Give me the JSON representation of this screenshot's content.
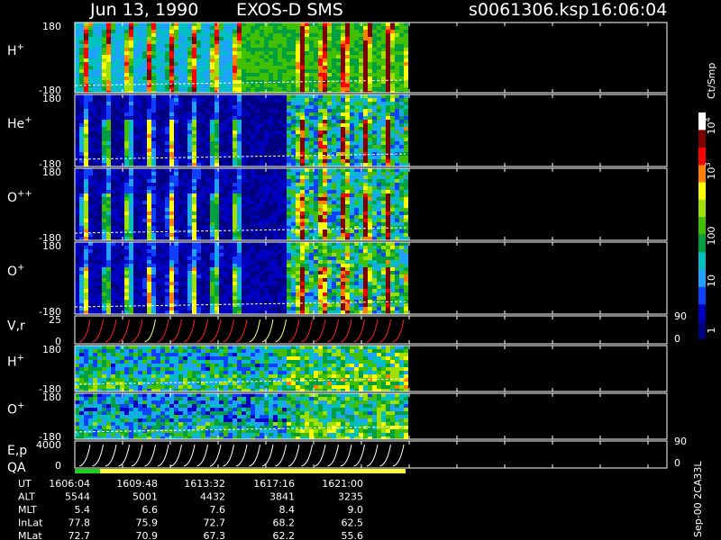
{
  "header": {
    "date": "Jun 13, 1990",
    "instrument": "EXOS-D SMS",
    "file": "s0061306.ksp",
    "time": "16:06:04"
  },
  "panels": [
    {
      "label": "H",
      "sup": "+",
      "ticks": [
        "180",
        "-180"
      ]
    },
    {
      "label": "He",
      "sup": "+",
      "ticks": [
        "180",
        "-180"
      ]
    },
    {
      "label": "O",
      "sup": "++",
      "ticks": [
        "180",
        "-180"
      ]
    },
    {
      "label": "O",
      "sup": "+",
      "ticks": [
        "180",
        "-180"
      ]
    },
    {
      "label": "V,r",
      "ticks": [
        "25",
        "0"
      ],
      "right_ticks": [
        "90",
        "0"
      ]
    },
    {
      "label": "H",
      "sup": "+",
      "ticks": [
        "180",
        "-180"
      ]
    },
    {
      "label": "O",
      "sup": "+",
      "ticks": [
        "180",
        "-180"
      ]
    },
    {
      "label": "E,p",
      "ticks": [
        "4000",
        "0"
      ],
      "right_ticks": [
        "90",
        "0"
      ]
    }
  ],
  "qa_label": "QA",
  "table": {
    "rows": [
      {
        "label": "UT",
        "values": [
          "1606:04",
          "1609:48",
          "1613:32",
          "1617:16",
          "1621:00"
        ]
      },
      {
        "label": "ALT",
        "values": [
          "5544",
          "5001",
          "4432",
          "3841",
          "3235"
        ]
      },
      {
        "label": "MLT",
        "values": [
          "5.4",
          "6.6",
          "7.6",
          "8.4",
          "9.0"
        ]
      },
      {
        "label": "InLat",
        "values": [
          "77.8",
          "75.9",
          "72.7",
          "68.2",
          "62.5"
        ]
      },
      {
        "label": "MLat",
        "values": [
          "72.7",
          "70.9",
          "67.3",
          "62.2",
          "55.6"
        ]
      }
    ]
  },
  "colorbar": {
    "unit": "Ct/Smp",
    "labels": [
      {
        "text": "10",
        "sup": "4"
      },
      {
        "text": "10",
        "sup": "3"
      },
      {
        "text": "100"
      },
      {
        "text": "10"
      },
      {
        "text": "1"
      }
    ]
  },
  "footer": "Sep-00 2CA33L"
}
